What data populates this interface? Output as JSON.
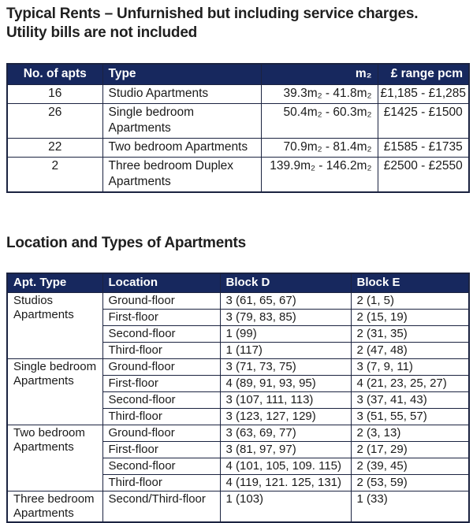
{
  "document": {
    "title_line1": "Typical Rents – Unfurnished but including service charges.",
    "title_line2": "Utility bills are not included",
    "section_heading": "Location and Types of Apartments"
  },
  "colors": {
    "table_header_bg": "#17285e",
    "table_border": "#1b2340",
    "header_text": "#ffffff",
    "body_text": "#1a1a1a"
  },
  "rents_table": {
    "headers": {
      "apts": "No. of apts",
      "type": "Type",
      "size": "m₂",
      "range": "£ range pcm"
    },
    "rows": [
      {
        "apts": "16",
        "type": "Studio Apartments",
        "size": "39.3m₂ - 41.8m₂",
        "range": "£1,185 - £1,285"
      },
      {
        "apts": "26",
        "type": "Single bedroom\nApartments",
        "size": "50.4m₂ - 60.3m₂",
        "range": "£1425 - £1500"
      },
      {
        "apts": "22",
        "type": "Two bedroom Apartments",
        "size": "70.9m₂ - 81.4m₂",
        "range": "£1585 - £1735"
      },
      {
        "apts": "2",
        "type": "Three bedroom Duplex\nApartments",
        "size": "139.9m₂ - 146.2m₂",
        "range": "£2500 - £2550"
      }
    ]
  },
  "location_table": {
    "headers": {
      "apt_type": "Apt. Type",
      "location": "Location",
      "block_d": "Block D",
      "block_e": "Block E"
    },
    "groups": [
      {
        "apt_type": "Studios\nApartments",
        "rows": [
          {
            "location": "Ground-floor",
            "block_d": "3 (61, 65, 67)",
            "block_e": "2 (1, 5)"
          },
          {
            "location": "First-floor",
            "block_d": "3 (79, 83, 85)",
            "block_e": "2 (15, 19)"
          },
          {
            "location": "Second-floor",
            "block_d": "1 (99)",
            "block_e": "2 (31, 35)"
          },
          {
            "location": "Third-floor",
            "block_d": "1 (117)",
            "block_e": "2 (47, 48)"
          }
        ]
      },
      {
        "apt_type": "Single bedroom\nApartments",
        "rows": [
          {
            "location": "Ground-floor",
            "block_d": "3 (71, 73, 75)",
            "block_e": "3 (7, 9, 11)"
          },
          {
            "location": "First-floor",
            "block_d": "4 (89, 91, 93, 95)",
            "block_e": "4 (21, 23, 25, 27)"
          },
          {
            "location": "Second-floor",
            "block_d": "3 (107, 111, 113)",
            "block_e": "3 (37, 41, 43)"
          },
          {
            "location": "Third-floor",
            "block_d": "3 (123, 127, 129)",
            "block_e": "3 (51, 55, 57)"
          }
        ]
      },
      {
        "apt_type": "Two bedroom\nApartments",
        "rows": [
          {
            "location": "Ground-floor",
            "block_d": "3 (63, 69, 77)",
            "block_e": "2 (3, 13)"
          },
          {
            "location": "First-floor",
            "block_d": "3 (81, 97, 97)",
            "block_e": "2 (17, 29)"
          },
          {
            "location": "Second-floor",
            "block_d": "4 (101, 105, 109. 115)",
            "block_e": "2 (39, 45)"
          },
          {
            "location": "Third-floor",
            "block_d": "4 (119, 121. 125, 131)",
            "block_e": "2 (53, 59)"
          }
        ]
      },
      {
        "apt_type": "Three bedroom\nApartments",
        "rows": [
          {
            "location": "Second/Third-floor",
            "block_d": "1 (103)",
            "block_e": "1 (33)"
          }
        ]
      }
    ]
  }
}
